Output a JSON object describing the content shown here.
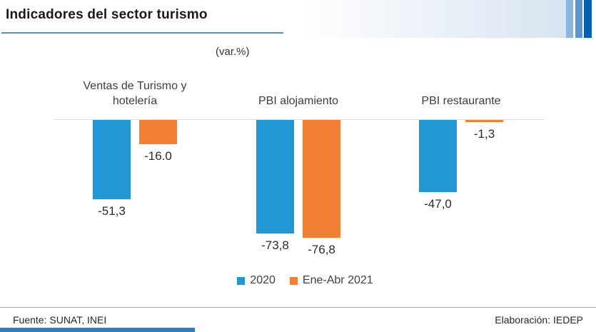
{
  "header": {
    "title": "Indicadores del sector turismo",
    "subtitle": "(var.%)"
  },
  "decor": {
    "title_underline_color": "#4d94d0",
    "gradient_color": "#d8e4f2",
    "accent_bar_colors": [
      "#8fb4da",
      "#5e96c8",
      "#0061ae"
    ],
    "bottom_accent_color": "#2e7fc2"
  },
  "chart_data": {
    "type": "bar",
    "title": "Indicadores del sector turismo",
    "subtitle": "(var.%)",
    "unit": "var.%",
    "categories": [
      "Ventas de Turismo y hotelería",
      "PBI alojamiento",
      "PBI restaurante"
    ],
    "series": [
      {
        "name": "2020",
        "color": "#2397d4",
        "values": [
          -51.3,
          -73.8,
          -47.0
        ]
      },
      {
        "name": "Ene-Abr 2021",
        "color": "#f18036",
        "values": [
          -16.0,
          -76.8,
          -1.3
        ]
      }
    ],
    "value_labels": [
      [
        "-51,3",
        "-16.0"
      ],
      [
        "-73,8",
        "-76,8"
      ],
      [
        "-47,0",
        "-1,3"
      ]
    ],
    "ylim": [
      -80,
      0
    ],
    "grid": false,
    "zero_line_color": "#dcdcdc",
    "legend_position": "bottom"
  },
  "footer": {
    "source": "Fuente: SUNAT, INEI",
    "elaboration": "Elaboración: IEDEP"
  }
}
